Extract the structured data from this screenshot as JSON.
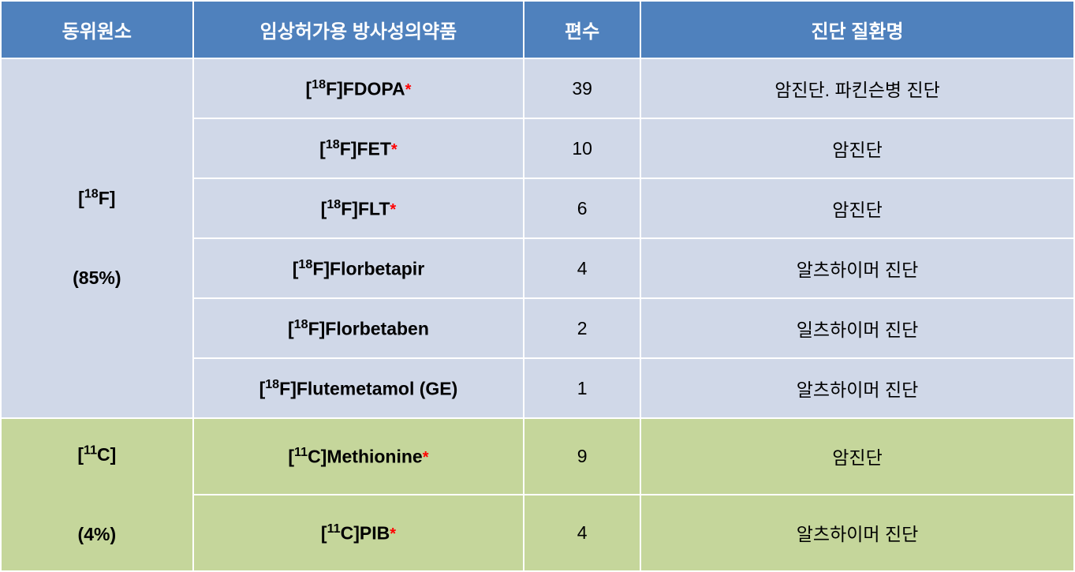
{
  "headers": {
    "isotope": "동위원소",
    "drug": "임상허가용 방사성의약품",
    "count": "편수",
    "diagnosis": "진단 질환명"
  },
  "groups": [
    {
      "isotope_sup": "18",
      "isotope_element": "F",
      "isotope_pct": "(85%)",
      "row_bg": "bg-blue",
      "rows": [
        {
          "sup": "18",
          "el": "F",
          "name": "FDOPA",
          "bold": true,
          "asterisk": true,
          "count": "39",
          "diag": "암진단. 파킨슨병 진단"
        },
        {
          "sup": "18",
          "el": "F",
          "name": "FET",
          "bold": true,
          "asterisk": true,
          "count": "10",
          "diag": "암진단"
        },
        {
          "sup": "18",
          "el": "F",
          "name": "FLT",
          "bold": true,
          "asterisk": true,
          "count": "6",
          "diag": "암진단"
        },
        {
          "sup": "18",
          "el": "F",
          "name": "Florbetapir",
          "bold": true,
          "asterisk": false,
          "count": "4",
          "diag": "알츠하이머 진단"
        },
        {
          "sup": "18",
          "el": "F",
          "name": "Florbetaben",
          "bold": true,
          "asterisk": false,
          "count": "2",
          "diag": "일츠하이머 진단"
        },
        {
          "sup": "18",
          "el": "F",
          "name": "Flutemetamol (GE)",
          "bold": true,
          "asterisk": false,
          "count": "1",
          "diag": "알츠하이머 진단"
        }
      ]
    },
    {
      "isotope_sup": "11",
      "isotope_element": "C",
      "isotope_pct": "(4%)",
      "row_bg": "bg-green",
      "rows": [
        {
          "sup": "11",
          "el": "C",
          "name": "Methionine",
          "bold": true,
          "asterisk": true,
          "count": "9",
          "diag": "암진단"
        },
        {
          "sup": "11",
          "el": "C",
          "name": "PIB",
          "bold": true,
          "asterisk": true,
          "count": "4",
          "diag": "알츠하이머 진단"
        }
      ]
    }
  ],
  "colors": {
    "header_bg": "#4f81bd",
    "header_text": "#ffffff",
    "blue_bg": "#d0d8e8",
    "green_bg": "#c5d69b",
    "asterisk": "#ff0000",
    "border": "#ffffff"
  }
}
